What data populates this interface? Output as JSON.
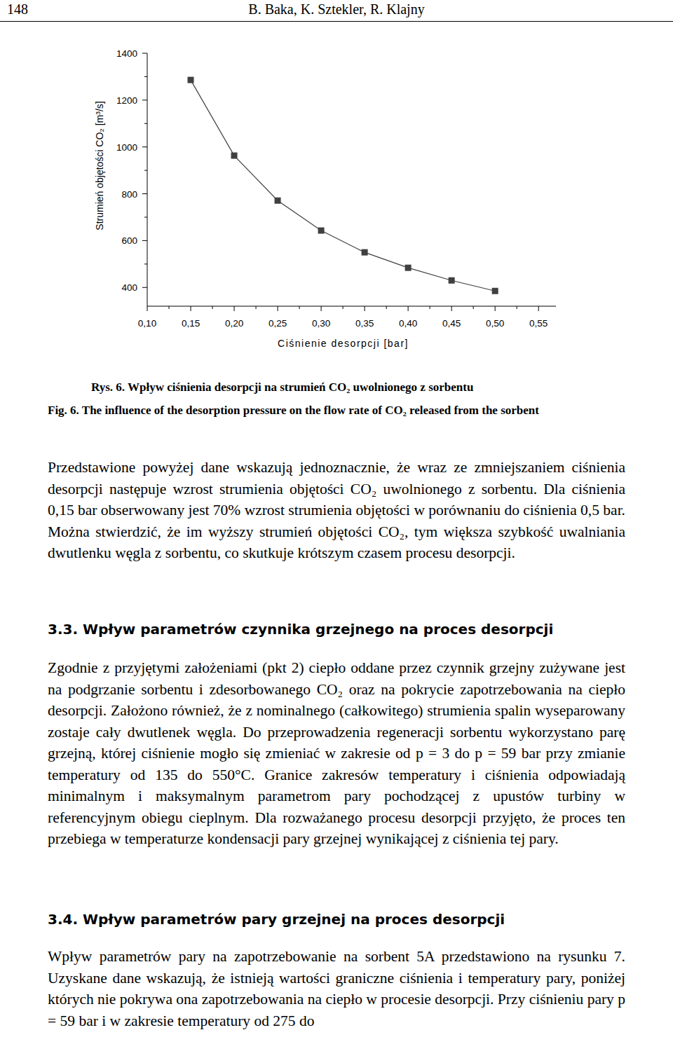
{
  "header": {
    "page_number": "148",
    "authors": "B. Baka, K. Sztekler, R. Klajny"
  },
  "chart_data": {
    "type": "line",
    "x_label": "Ciśnienie desorpcji [bar]",
    "y_label": "Strumień objętości CO₂ [m³/s]",
    "x": [
      0.15,
      0.2,
      0.25,
      0.3,
      0.35,
      0.4,
      0.45,
      0.5
    ],
    "values": [
      1286,
      963,
      771,
      643,
      550,
      484,
      430,
      385
    ],
    "color": "#404040",
    "marker": "square",
    "line_style": "solid",
    "grid": false,
    "xlim": [
      0.1,
      0.57
    ],
    "ylim": [
      320,
      1400
    ],
    "xticks": [
      {
        "value": 0.1,
        "label": "0,10"
      },
      {
        "value": 0.15,
        "label": "0,15"
      },
      {
        "value": 0.2,
        "label": "0,20"
      },
      {
        "value": 0.25,
        "label": "0,25"
      },
      {
        "value": 0.3,
        "label": "0,30"
      },
      {
        "value": 0.35,
        "label": "0,35"
      },
      {
        "value": 0.4,
        "label": "0,40"
      },
      {
        "value": 0.45,
        "label": "0,45"
      },
      {
        "value": 0.5,
        "label": "0,50"
      },
      {
        "value": 0.55,
        "label": "0,55"
      }
    ],
    "yticks": [
      400,
      600,
      800,
      1000,
      1200,
      1400
    ]
  },
  "captions": {
    "pl": "Rys. 6. Wpływ ciśnienia desorpcji na strumień CO₂ uwolnionego z sorbentu",
    "en": "Fig. 6. The influence of the desorption pressure on the flow rate of CO₂ released from the sorbent"
  },
  "body": [
    {
      "type": "paragraph",
      "text": "Przedstawione powyżej dane wskazują jednoznacznie, że wraz ze zmniejszaniem ciśnienia desorpcji następuje wzrost strumienia objętości CO₂ uwolnionego z sorbentu. Dla ciśnienia 0,15 bar obserwowany jest 70% wzrost strumienia objętości w porównaniu do ciśnienia 0,5 bar. Można stwierdzić, że im wyższy strumień objętości CO₂, tym większa szybkość uwalniania dwutlenku węgla z sorbentu, co skutkuje krótszym czasem procesu desorpcji."
    },
    {
      "type": "heading",
      "text": "3.3. Wpływ parametrów czynnika grzejnego na proces desorpcji"
    },
    {
      "type": "paragraph",
      "text": "Zgodnie z przyjętymi założeniami (pkt 2) ciepło oddane przez czynnik grzejny zużywane jest na podgrzanie sorbentu i zdesorbowanego CO₂ oraz na pokrycie zapotrzebowania na ciepło desorpcji. Założono również, że z nominalnego (całkowitego) strumienia spalin wyseparowany zostaje cały dwutlenek węgla. Do przeprowadzenia regeneracji sorbentu wykorzystano parę grzejną, której ciśnienie mogło się zmieniać w zakresie od p = 3 do p = 59 bar przy zmianie temperatury od 135 do 550°C. Granice zakresów temperatury i ciśnienia odpowiadają minimalnym i maksymalnym parametrom pary pochodzącej z upustów turbiny w referencyjnym obiegu cieplnym. Dla rozważanego procesu desorpcji przyjęto, że proces ten przebiega w temperaturze kondensacji pary grzejnej wynikającej z ciśnienia tej pary."
    },
    {
      "type": "heading",
      "text": "3.4. Wpływ parametrów pary grzejnej na proces desorpcji"
    },
    {
      "type": "paragraph",
      "text": "Wpływ parametrów pary na zapotrzebowanie na sorbent 5A przedstawiono na rysunku 7. Uzyskane dane wskazują, że istnieją wartości graniczne ciśnienia i temperatury pary, poniżej których nie pokrywa ona zapotrzebowania na ciepło w procesie desorpcji. Przy ciśnieniu pary p = 59 bar i w zakresie temperatury od 275 do"
    }
  ]
}
